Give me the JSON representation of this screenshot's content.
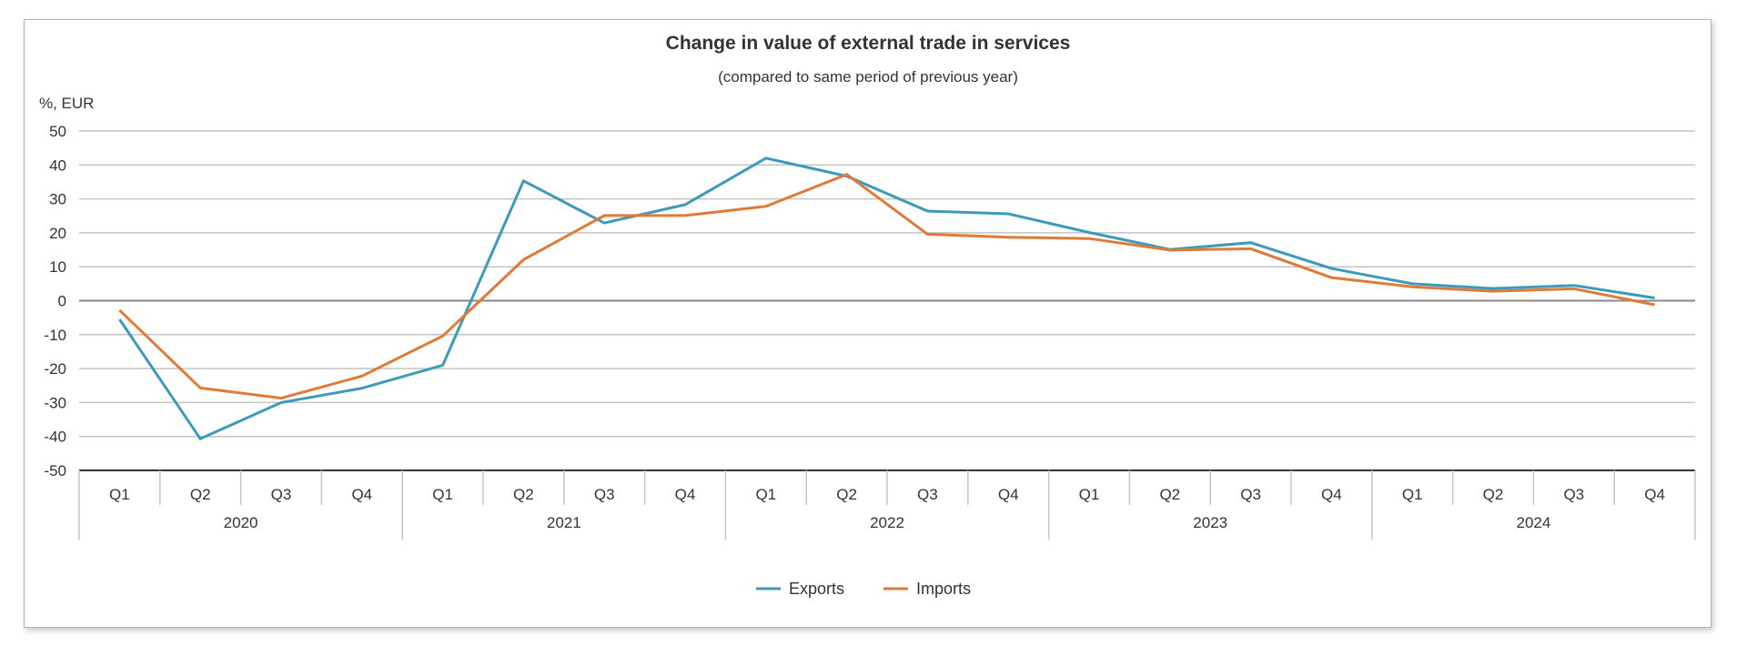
{
  "chart_data": {
    "type": "line",
    "title": "Change in value of external trade in services",
    "subtitle": "(compared to same period of previous year)",
    "ylabel": "%, EUR",
    "xlabel": "",
    "ylim": [
      -50,
      50
    ],
    "yticks": [
      50,
      40,
      30,
      20,
      10,
      0,
      -10,
      -20,
      -30,
      -40,
      -50
    ],
    "grid": true,
    "legend_position": "bottom-center",
    "years": [
      "2020",
      "2021",
      "2022",
      "2023",
      "2024"
    ],
    "quarters": [
      "Q1",
      "Q2",
      "Q3",
      "Q4"
    ],
    "categories": [
      "2020 Q1",
      "2020 Q2",
      "2020 Q3",
      "2020 Q4",
      "2021 Q1",
      "2021 Q2",
      "2021 Q3",
      "2021 Q4",
      "2022 Q1",
      "2022 Q2",
      "2022 Q3",
      "2022 Q4",
      "2023 Q1",
      "2023 Q2",
      "2023 Q3",
      "2023 Q4",
      "2024 Q1",
      "2024 Q2",
      "2024 Q3",
      "2024 Q4"
    ],
    "series": [
      {
        "name": "Exports",
        "color": "#3d9ab8",
        "values": [
          -5.5,
          -40.7,
          -30.0,
          -25.8,
          -19.0,
          35.3,
          22.9,
          28.3,
          42.0,
          36.7,
          26.4,
          25.6,
          20.1,
          15.1,
          17.1,
          9.5,
          5.0,
          3.6,
          4.5,
          0.8
        ]
      },
      {
        "name": "Imports",
        "color": "#e07a38",
        "values": [
          -2.8,
          -25.7,
          -28.7,
          -22.2,
          -10.4,
          12.1,
          25.1,
          25.1,
          27.8,
          37.2,
          19.6,
          18.7,
          18.3,
          14.9,
          15.3,
          6.8,
          4.1,
          2.8,
          3.5,
          -1.2
        ]
      }
    ]
  }
}
